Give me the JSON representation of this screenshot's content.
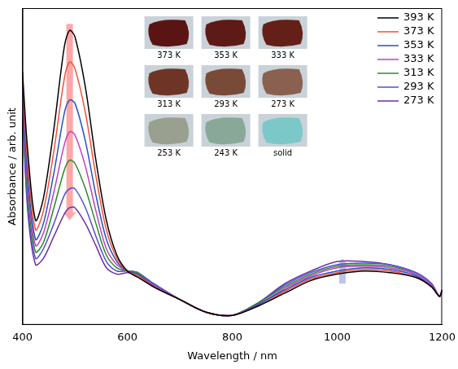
{
  "chart_data": {
    "type": "line",
    "x_label": "Wavelength / nm",
    "y_label": "Absorbance / arb. unit",
    "x": [
      400,
      410,
      425,
      440,
      460,
      480,
      490,
      500,
      520,
      540,
      560,
      580,
      600,
      620,
      650,
      700,
      750,
      800,
      850,
      900,
      950,
      1000,
      1050,
      1100,
      1150,
      1180,
      1195,
      1200
    ],
    "series": [
      {
        "name": "393 K",
        "color": "#000000",
        "values": [
          0.8,
          0.55,
          0.33,
          0.4,
          0.62,
          0.88,
          0.93,
          0.91,
          0.75,
          0.52,
          0.33,
          0.22,
          0.17,
          0.15,
          0.12,
          0.08,
          0.04,
          0.03,
          0.06,
          0.1,
          0.14,
          0.16,
          0.17,
          0.165,
          0.15,
          0.12,
          0.09,
          0.11
        ]
      },
      {
        "name": "373 K",
        "color": "#f0503a",
        "values": [
          0.78,
          0.51,
          0.3,
          0.36,
          0.55,
          0.78,
          0.83,
          0.81,
          0.67,
          0.47,
          0.3,
          0.21,
          0.17,
          0.155,
          0.12,
          0.08,
          0.04,
          0.03,
          0.06,
          0.105,
          0.145,
          0.165,
          0.175,
          0.17,
          0.15,
          0.12,
          0.09,
          0.11
        ]
      },
      {
        "name": "353 K",
        "color": "#2a4fbf",
        "values": [
          0.76,
          0.47,
          0.27,
          0.32,
          0.48,
          0.67,
          0.71,
          0.7,
          0.58,
          0.41,
          0.27,
          0.2,
          0.17,
          0.16,
          0.12,
          0.08,
          0.04,
          0.03,
          0.065,
          0.11,
          0.15,
          0.17,
          0.18,
          0.175,
          0.155,
          0.12,
          0.09,
          0.11
        ]
      },
      {
        "name": "333 K",
        "color": "#c040c0",
        "values": [
          0.74,
          0.44,
          0.25,
          0.29,
          0.42,
          0.57,
          0.61,
          0.6,
          0.5,
          0.36,
          0.24,
          0.19,
          0.17,
          0.16,
          0.125,
          0.08,
          0.04,
          0.03,
          0.065,
          0.115,
          0.155,
          0.18,
          0.185,
          0.18,
          0.16,
          0.125,
          0.09,
          0.11
        ]
      },
      {
        "name": "313 K",
        "color": "#2a8a2a",
        "values": [
          0.72,
          0.41,
          0.23,
          0.26,
          0.37,
          0.49,
          0.52,
          0.51,
          0.43,
          0.32,
          0.22,
          0.18,
          0.17,
          0.165,
          0.125,
          0.08,
          0.04,
          0.03,
          0.07,
          0.12,
          0.16,
          0.185,
          0.19,
          0.185,
          0.16,
          0.125,
          0.09,
          0.11
        ]
      },
      {
        "name": "293 K",
        "color": "#5050d0",
        "values": [
          0.7,
          0.38,
          0.21,
          0.24,
          0.32,
          0.41,
          0.43,
          0.43,
          0.37,
          0.28,
          0.2,
          0.17,
          0.17,
          0.165,
          0.13,
          0.08,
          0.04,
          0.03,
          0.07,
          0.125,
          0.165,
          0.19,
          0.195,
          0.19,
          0.165,
          0.13,
          0.09,
          0.11
        ]
      },
      {
        "name": "273 K",
        "color": "#7030a0",
        "values": [
          0.68,
          0.36,
          0.19,
          0.21,
          0.28,
          0.35,
          0.37,
          0.37,
          0.32,
          0.25,
          0.18,
          0.16,
          0.165,
          0.16,
          0.13,
          0.08,
          0.04,
          0.03,
          0.07,
          0.13,
          0.17,
          0.2,
          0.2,
          0.19,
          0.165,
          0.13,
          0.09,
          0.11
        ]
      }
    ],
    "xlim": [
      400,
      1200
    ],
    "xticks": [
      400,
      600,
      800,
      1000,
      1200
    ],
    "ylim": [
      0,
      1
    ],
    "tick_labels": "x",
    "grid": false,
    "legend": "upper right",
    "arrows": [
      {
        "x": 490,
        "from": 0.95,
        "to": 0.33,
        "color": "#ff6a6a"
      },
      {
        "x": 1010,
        "from": 0.13,
        "to": 0.21,
        "color": "#8f9fd8"
      }
    ],
    "insets": [
      {
        "label": "373 K",
        "color": "#5a1414"
      },
      {
        "label": "353 K",
        "color": "#5e1a16"
      },
      {
        "label": "333 K",
        "color": "#642018"
      },
      {
        "label": "313 K",
        "color": "#6e3526"
      },
      {
        "label": "293 K",
        "color": "#7a4a38"
      },
      {
        "label": "273 K",
        "color": "#8a6050"
      },
      {
        "label": "253 K",
        "color": "#9aa090"
      },
      {
        "label": "243 K",
        "color": "#8aa898"
      },
      {
        "label": "solid",
        "color": "#7cc8c8"
      }
    ]
  }
}
